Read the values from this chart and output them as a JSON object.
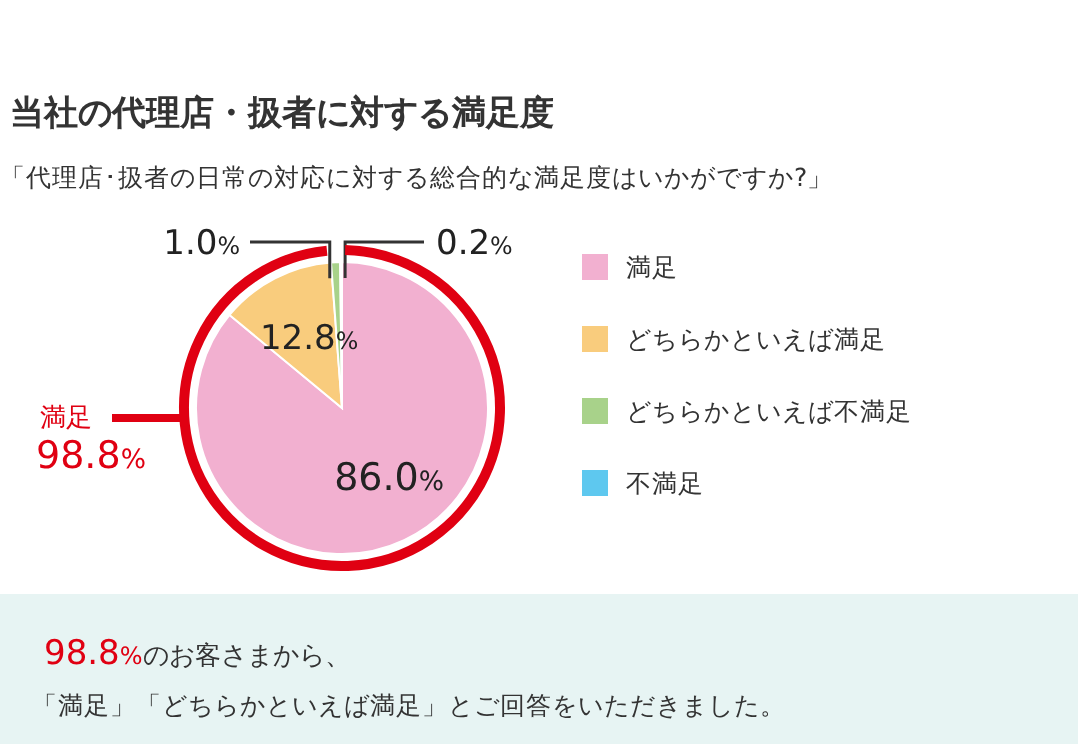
{
  "chart_data": {
    "type": "pie",
    "title": "当社の代理店・扱者に対する満足度",
    "subtitle": "「代理店･扱者の日常の対応に対する総合的な満足度はいかがですか?」",
    "categories": [
      "満足",
      "どちらかといえば満足",
      "どちらかといえば不満足",
      "不満足"
    ],
    "values": [
      86.0,
      12.8,
      1.0,
      0.2
    ],
    "colors": [
      "#f2b0d0",
      "#f9cc7d",
      "#a8d28a",
      "#5ec8ef"
    ],
    "value_labels": [
      "86.0%",
      "12.8%",
      "1.0%",
      "0.2%"
    ],
    "legend": "right",
    "annotations": [
      "満足",
      "98.8%",
      "98.8%のお客さまから、",
      "「満足」「どちらかといえば満足」とご回答をいただきました。"
    ]
  }
}
